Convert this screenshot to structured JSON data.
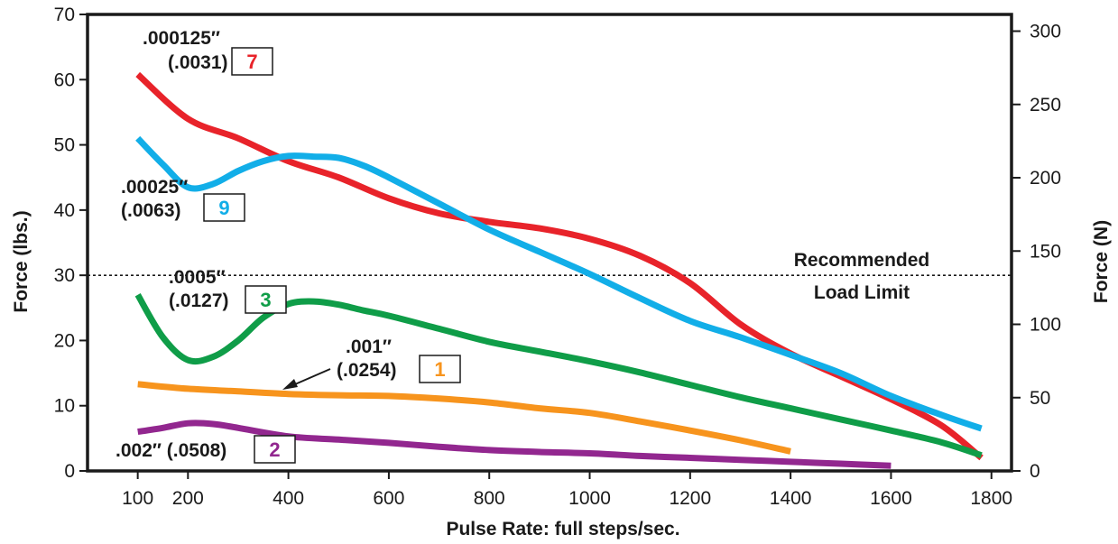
{
  "chart_data": {
    "type": "line",
    "xlabel": "Pulse Rate:  full steps/sec.",
    "ylabel": "Force (lbs.)",
    "y2label": "Force (N)",
    "xlim": [
      0,
      1840
    ],
    "ylim": [
      0,
      70
    ],
    "y2lim": [
      0,
      311.4
    ],
    "x_ticks": [
      100,
      200,
      400,
      600,
      800,
      1000,
      1200,
      1400,
      1600,
      1800
    ],
    "y_ticks": [
      0,
      10,
      20,
      30,
      40,
      50,
      60,
      70
    ],
    "y2_ticks": [
      0,
      50,
      100,
      150,
      200,
      250,
      300
    ],
    "grid": false,
    "reference_line": {
      "y": 30,
      "label_line1": "Recommended",
      "label_line2": "Load Limit"
    },
    "series": [
      {
        "id": "7",
        "color": "#e8232a",
        "label_line1": ".000125″",
        "label_line2": "(.0031)",
        "badge": "7",
        "x": [
          100,
          200,
          300,
          400,
          500,
          600,
          700,
          800,
          900,
          1000,
          1100,
          1200,
          1300,
          1400,
          1500,
          1600,
          1700,
          1780
        ],
        "y": [
          60.8,
          54,
          51,
          47.5,
          45,
          41.8,
          39.5,
          38.2,
          37.2,
          35.6,
          33,
          28.8,
          22.5,
          18,
          14.5,
          11,
          7,
          2
        ]
      },
      {
        "id": "9",
        "color": "#12aee8",
        "label_line1": ".00025″",
        "label_line2": "(.0063)",
        "badge": "9",
        "x": [
          100,
          150,
          200,
          250,
          300,
          350,
          400,
          450,
          500,
          550,
          600,
          700,
          800,
          900,
          1000,
          1100,
          1200,
          1300,
          1400,
          1500,
          1600,
          1700,
          1780
        ],
        "y": [
          51,
          47,
          43.5,
          44,
          46,
          47.5,
          48.3,
          48.2,
          48,
          46.8,
          45,
          41,
          37,
          33.6,
          30.2,
          26.5,
          23,
          20.5,
          17.8,
          15,
          11.5,
          8.6,
          6.5
        ]
      },
      {
        "id": "3",
        "color": "#0f9d48",
        "label_line1": ".0005″",
        "label_line2": "(.0127)",
        "badge": "3",
        "x": [
          100,
          150,
          200,
          250,
          300,
          350,
          400,
          450,
          500,
          550,
          600,
          700,
          800,
          900,
          1000,
          1100,
          1200,
          1300,
          1400,
          1500,
          1600,
          1700,
          1780
        ],
        "y": [
          27,
          20.5,
          17,
          17.5,
          20,
          23.5,
          25.6,
          26,
          25.5,
          24.6,
          23.8,
          21.8,
          19.8,
          18.3,
          16.8,
          15.1,
          13.2,
          11.3,
          9.6,
          7.9,
          6.2,
          4.4,
          2.4
        ]
      },
      {
        "id": "1",
        "color": "#f7941d",
        "label_line1": ".001″",
        "label_line2": "(.0254)",
        "badge": "1",
        "x": [
          100,
          200,
          300,
          400,
          500,
          600,
          700,
          800,
          900,
          1000,
          1100,
          1200,
          1300,
          1400
        ],
        "y": [
          13.3,
          12.6,
          12.2,
          11.8,
          11.6,
          11.5,
          11.1,
          10.5,
          9.6,
          8.9,
          7.6,
          6.2,
          4.7,
          3
        ]
      },
      {
        "id": "2",
        "color": "#92278f",
        "label_line1": ".002″ (.0508)",
        "label_line2": "",
        "badge": "2",
        "x": [
          100,
          150,
          200,
          250,
          300,
          400,
          500,
          600,
          700,
          800,
          900,
          1000,
          1100,
          1200,
          1300,
          1400,
          1500,
          1600
        ],
        "y": [
          6,
          6.6,
          7.3,
          7.2,
          6.6,
          5.3,
          4.8,
          4.3,
          3.7,
          3.2,
          2.9,
          2.7,
          2.3,
          2,
          1.7,
          1.4,
          1.1,
          0.8
        ]
      }
    ]
  }
}
